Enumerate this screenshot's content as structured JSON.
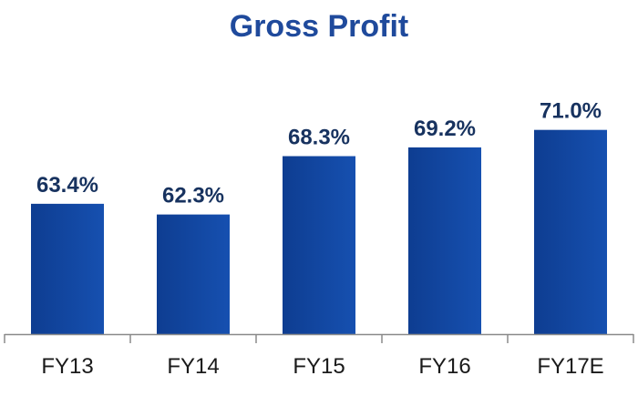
{
  "chart_data": {
    "type": "bar",
    "title": "Gross Profit",
    "categories": [
      "FY13",
      "FY14",
      "FY15",
      "FY16",
      "FY17E"
    ],
    "values": [
      63.4,
      62.3,
      68.3,
      69.2,
      71.0
    ],
    "value_labels": [
      "63.4%",
      "62.3%",
      "68.3%",
      "69.2%",
      "71.0%"
    ],
    "xlabel": "",
    "ylabel": "",
    "ylim": [
      50,
      72
    ],
    "grid": false,
    "legend": "none",
    "bar_color": "#0e3d91",
    "bar_color_light": "#1650b0",
    "title_color": "#1f4a9c",
    "label_color": "#17325f"
  }
}
